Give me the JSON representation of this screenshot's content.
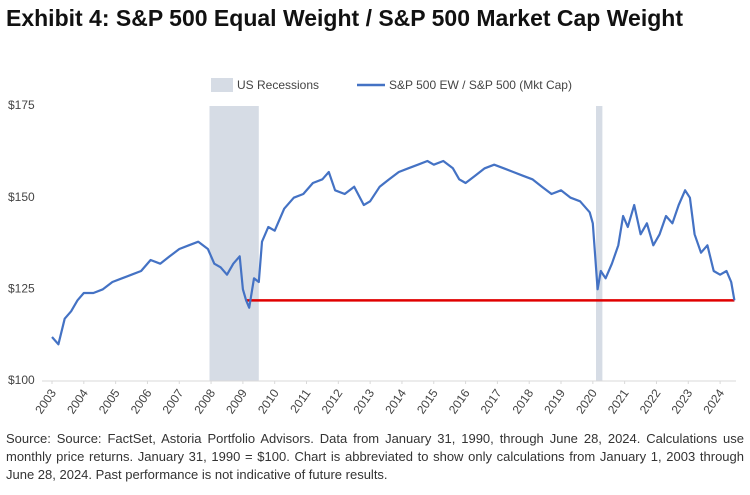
{
  "chart_data": {
    "type": "line",
    "title": "Exhibit 4: S&P 500 Equal Weight / S&P 500 Market Cap Weight",
    "source": "Source: Source: FactSet, Astoria Portfolio Advisors. Data from January 31, 1990, through June 28, 2024. Calculations use monthly price returns. January 31, 1990 = $100. Chart is abbreviated to show only calculations from January 1, 2003 through June 28, 2024. Past performance is not indicative of future results.",
    "x": [
      2003.0,
      2003.2,
      2003.4,
      2003.6,
      2003.8,
      2004.0,
      2004.3,
      2004.6,
      2004.9,
      2005.2,
      2005.5,
      2005.8,
      2006.1,
      2006.4,
      2006.7,
      2007.0,
      2007.3,
      2007.6,
      2007.9,
      2008.1,
      2008.3,
      2008.5,
      2008.7,
      2008.9,
      2009.0,
      2009.1,
      2009.2,
      2009.35,
      2009.5,
      2009.6,
      2009.8,
      2010.0,
      2010.3,
      2010.6,
      2010.9,
      2011.2,
      2011.5,
      2011.7,
      2011.9,
      2012.2,
      2012.5,
      2012.8,
      2013.0,
      2013.3,
      2013.6,
      2013.9,
      2014.2,
      2014.5,
      2014.8,
      2015.0,
      2015.3,
      2015.6,
      2015.8,
      2016.0,
      2016.3,
      2016.6,
      2016.9,
      2017.2,
      2017.5,
      2017.8,
      2018.1,
      2018.4,
      2018.7,
      2019.0,
      2019.3,
      2019.6,
      2019.9,
      2020.0,
      2020.15,
      2020.25,
      2020.4,
      2020.6,
      2020.8,
      2020.95,
      2021.1,
      2021.3,
      2021.5,
      2021.7,
      2021.9,
      2022.1,
      2022.3,
      2022.5,
      2022.7,
      2022.9,
      2023.05,
      2023.2,
      2023.4,
      2023.6,
      2023.8,
      2024.0,
      2024.2,
      2024.35,
      2024.45
    ],
    "series": [
      {
        "name": "S&P 500 EW / S&P 500 (Mkt Cap)",
        "color": "#4472c4",
        "values": [
          112,
          110,
          117,
          119,
          122,
          124,
          124,
          125,
          127,
          128,
          129,
          130,
          133,
          132,
          134,
          136,
          137,
          138,
          136,
          132,
          131,
          129,
          132,
          134,
          125,
          122,
          120,
          128,
          127,
          138,
          142,
          141,
          147,
          150,
          151,
          154,
          155,
          157,
          152,
          151,
          153,
          148,
          149,
          153,
          155,
          157,
          158,
          159,
          160,
          159,
          160,
          158,
          155,
          154,
          156,
          158,
          159,
          158,
          157,
          156,
          155,
          153,
          151,
          152,
          150,
          149,
          146,
          143,
          125,
          130,
          128,
          132,
          137,
          145,
          142,
          148,
          140,
          143,
          137,
          140,
          145,
          143,
          148,
          152,
          150,
          140,
          135,
          137,
          130,
          129,
          130,
          127,
          122
        ]
      }
    ],
    "recessions": {
      "name": "US Recessions",
      "color": "#d6dce5",
      "ranges": [
        [
          2007.95,
          2009.5
        ],
        [
          2020.1,
          2020.3
        ]
      ]
    },
    "reference_line": {
      "value": 122,
      "x": [
        2009.1,
        2024.45
      ],
      "color": "#e00000"
    },
    "xlim": [
      2003.0,
      2024.5
    ],
    "xticks": [
      2003,
      2004,
      2005,
      2006,
      2007,
      2008,
      2009,
      2010,
      2011,
      2012,
      2013,
      2014,
      2015,
      2016,
      2017,
      2018,
      2019,
      2020,
      2021,
      2022,
      2023,
      2024
    ],
    "ylim": [
      100,
      175
    ],
    "yticks": [
      {
        "value": 100,
        "label": "$100"
      },
      {
        "value": 125,
        "label": "$125"
      },
      {
        "value": 150,
        "label": "$150"
      },
      {
        "value": 175,
        "label": "$175"
      }
    ]
  }
}
